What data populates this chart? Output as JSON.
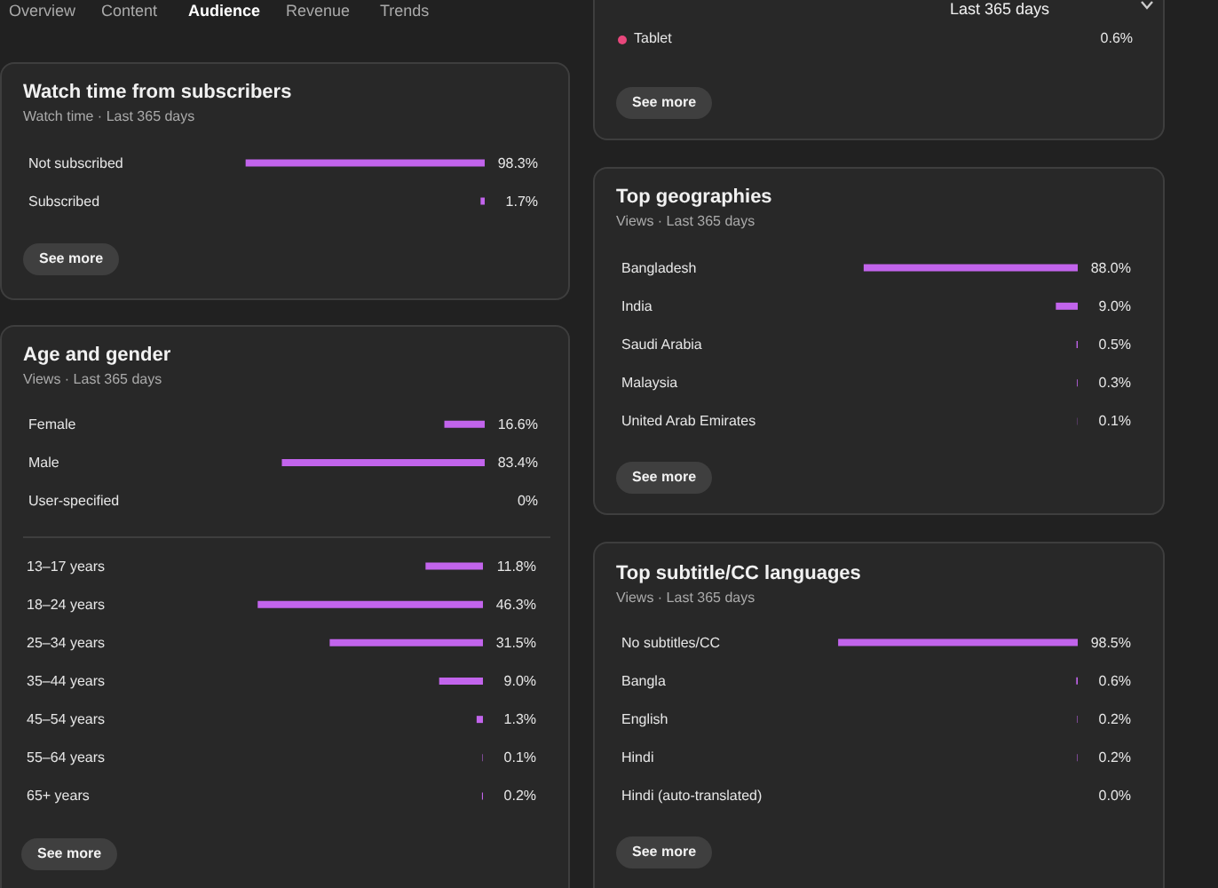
{
  "chart_data": [
    {
      "type": "other",
      "annotations": [
        "Overview",
        "Content",
        "Audience",
        "Revenue",
        "Trends",
        "Last 365 days"
      ]
    },
    {
      "type": "bar",
      "orientation": "horizontal",
      "title": "Watch time from subscribers",
      "subtitle": "Watch time · Last 365 days",
      "categories": [
        "Not subscribed",
        "Subscribed"
      ],
      "values": [
        98.3,
        1.7
      ],
      "value_labels": [
        "98.3%",
        "1.7%"
      ],
      "color": "#c264ec",
      "annotations": [
        "See more"
      ]
    },
    {
      "type": "bar",
      "orientation": "horizontal",
      "title": "Age and gender",
      "subtitle": "Views · Last 365 days",
      "categories": [
        "Female",
        "Male",
        "User-specified"
      ],
      "values": [
        16.6,
        83.4,
        0
      ],
      "value_labels": [
        "16.6%",
        "83.4%",
        "0%"
      ],
      "color": "#c264ec"
    },
    {
      "type": "bar",
      "orientation": "horizontal",
      "categories": [
        "13–17 years",
        "18–24 years",
        "25–34 years",
        "35–44 years",
        "45–54 years",
        "55–64 years",
        "65+ years"
      ],
      "values": [
        11.8,
        46.3,
        31.5,
        9.0,
        1.3,
        0.1,
        0.2
      ],
      "value_labels": [
        "11.8%",
        "46.3%",
        "31.5%",
        "9.0%",
        "1.3%",
        "0.1%",
        "0.2%"
      ],
      "color": "#c264ec",
      "annotations": [
        "See more"
      ]
    },
    {
      "type": "other",
      "annotations": [
        "Tablet",
        "0.6%",
        "See more"
      ],
      "color": "#e8477c"
    },
    {
      "type": "bar",
      "orientation": "horizontal",
      "title": "Top geographies",
      "subtitle": "Views · Last 365 days",
      "categories": [
        "Bangladesh",
        "India",
        "Saudi Arabia",
        "Malaysia",
        "United Arab Emirates"
      ],
      "values": [
        88.0,
        9.0,
        0.5,
        0.3,
        0.1
      ],
      "value_labels": [
        "88.0%",
        "9.0%",
        "0.5%",
        "0.3%",
        "0.1%"
      ],
      "color": "#c264ec",
      "annotations": [
        "See more"
      ]
    },
    {
      "type": "bar",
      "orientation": "horizontal",
      "title": "Top subtitle/CC languages",
      "subtitle": "Views · Last 365 days",
      "categories": [
        "No subtitles/CC",
        "Bangla",
        "English",
        "Hindi",
        "Hindi (auto-translated)"
      ],
      "values": [
        98.5,
        0.6,
        0.2,
        0.2,
        0.0
      ],
      "value_labels": [
        "98.5%",
        "0.6%",
        "0.2%",
        "0.2%",
        "0.0%"
      ],
      "color": "#c264ec",
      "annotations": [
        "See more"
      ]
    }
  ]
}
